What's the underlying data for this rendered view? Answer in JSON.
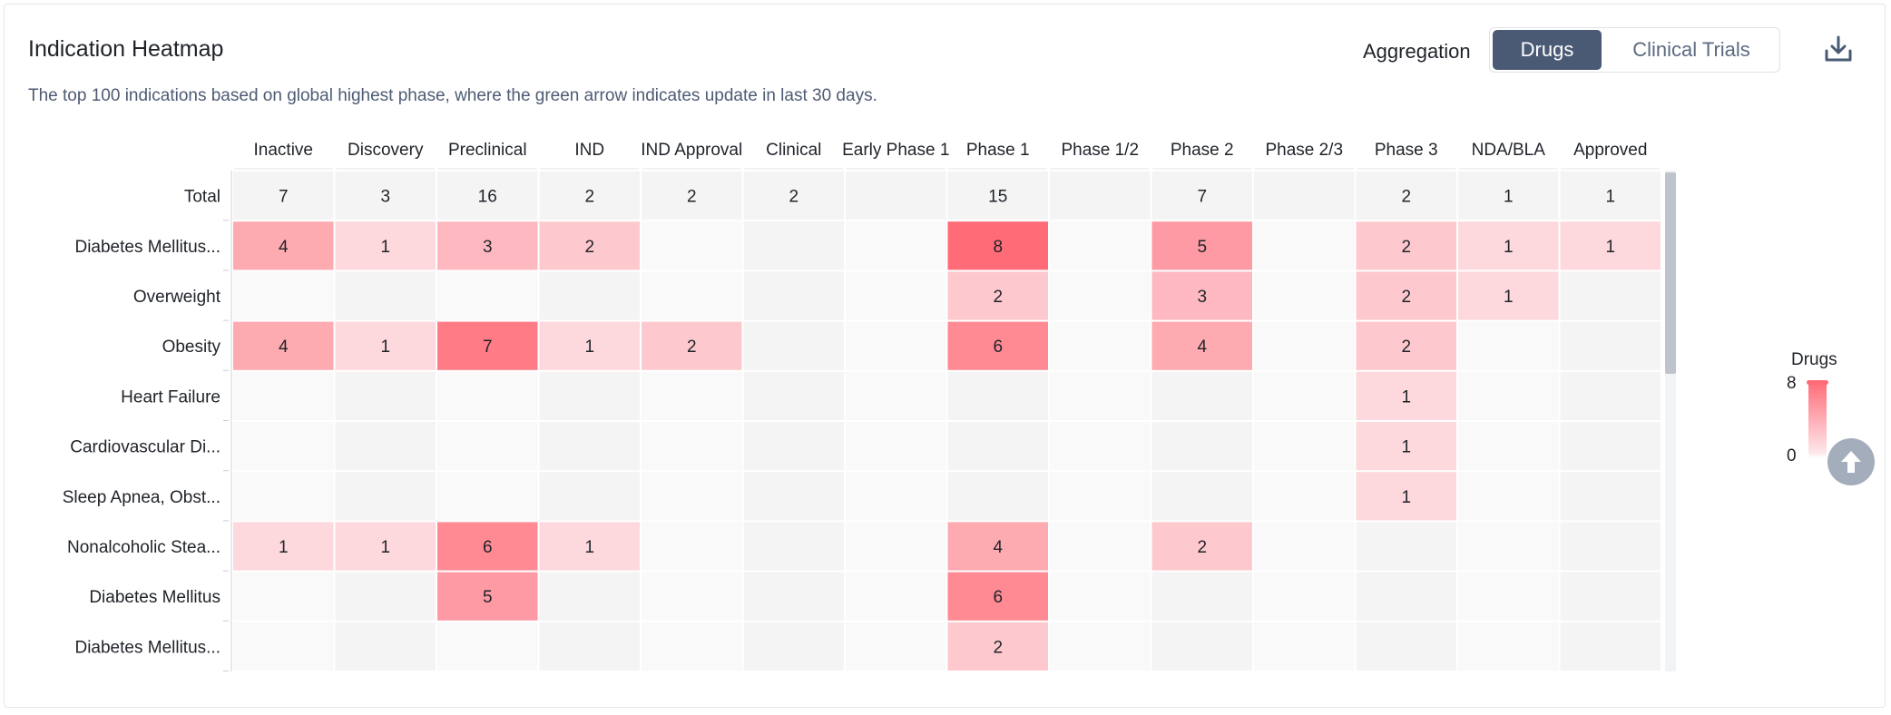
{
  "header": {
    "title": "Indication Heatmap",
    "subtitle": "The top 100 indications based on global highest phase, where the green arrow indicates update in last 30 days.",
    "aggregation_label": "Aggregation",
    "tabs": [
      "Drugs",
      "Clinical Trials"
    ],
    "active_tab": "Drugs"
  },
  "icons": {
    "download": "download-icon",
    "scroll_top": "arrow-up-icon"
  },
  "colors": {
    "max": "#ff6b77",
    "min": "#fde8eb",
    "empty_a": "#f9f9f9",
    "empty_b": "#f4f4f5",
    "total_row": "#f4f4f5",
    "button_active": "#4a5a75"
  },
  "legend": {
    "title": "Drugs",
    "max": "8",
    "min": "0"
  },
  "chart_data": {
    "type": "heatmap",
    "columns": [
      "Inactive",
      "Discovery",
      "Preclinical",
      "IND",
      "IND Approval",
      "Clinical",
      "Early Phase 1",
      "Phase 1",
      "Phase 1/2",
      "Phase 2",
      "Phase 2/3",
      "Phase 3",
      "NDA/BLA",
      "Approved"
    ],
    "total": {
      "label": "Total",
      "values": [
        7,
        3,
        16,
        2,
        2,
        2,
        null,
        15,
        null,
        7,
        null,
        2,
        1,
        1
      ]
    },
    "rows": [
      {
        "label": "Diabetes Mellitus...",
        "values": [
          4,
          1,
          3,
          2,
          null,
          null,
          null,
          8,
          null,
          5,
          null,
          2,
          1,
          1
        ]
      },
      {
        "label": "Overweight",
        "values": [
          null,
          null,
          null,
          null,
          null,
          null,
          null,
          2,
          null,
          3,
          null,
          2,
          1,
          null
        ]
      },
      {
        "label": "Obesity",
        "values": [
          4,
          1,
          7,
          1,
          2,
          null,
          null,
          6,
          null,
          4,
          null,
          2,
          null,
          null
        ]
      },
      {
        "label": "Heart Failure",
        "values": [
          null,
          null,
          null,
          null,
          null,
          null,
          null,
          null,
          null,
          null,
          null,
          1,
          null,
          null
        ]
      },
      {
        "label": "Cardiovascular Di...",
        "values": [
          null,
          null,
          null,
          null,
          null,
          null,
          null,
          null,
          null,
          null,
          null,
          1,
          null,
          null
        ]
      },
      {
        "label": "Sleep Apnea, Obst...",
        "values": [
          null,
          null,
          null,
          null,
          null,
          null,
          null,
          null,
          null,
          null,
          null,
          1,
          null,
          null
        ]
      },
      {
        "label": "Nonalcoholic Stea...",
        "values": [
          1,
          1,
          6,
          1,
          null,
          null,
          null,
          4,
          null,
          2,
          null,
          null,
          null,
          null
        ]
      },
      {
        "label": "Diabetes Mellitus",
        "values": [
          null,
          null,
          5,
          null,
          null,
          null,
          null,
          6,
          null,
          null,
          null,
          null,
          null,
          null
        ]
      },
      {
        "label": "Diabetes Mellitus...",
        "values": [
          null,
          null,
          null,
          null,
          null,
          null,
          null,
          2,
          null,
          null,
          null,
          null,
          null,
          null
        ]
      }
    ],
    "value_range": [
      0,
      8
    ]
  }
}
